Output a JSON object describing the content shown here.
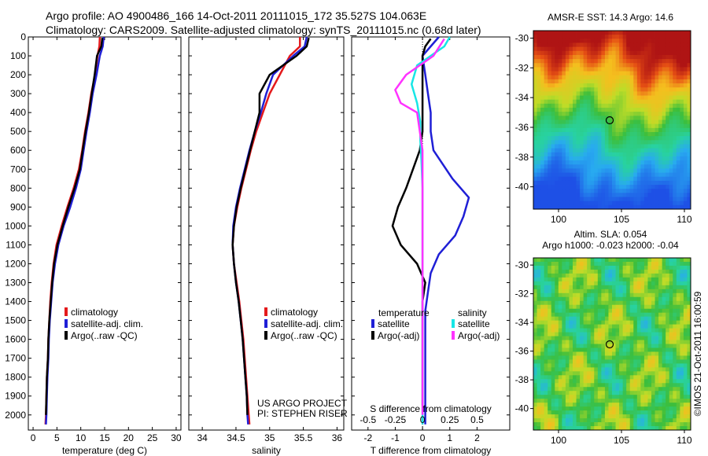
{
  "title_line1": "Argo profile: AO 4900486_166 14-Oct-2011 20111015_172 35.527S 104.063E",
  "title_line2": "Climatology: CARS2009. Satellite-adjusted climatology: synTS_20111015.nc (0.68d later)",
  "colors": {
    "climatology": "#e41a1c",
    "satellite": "#1f1fd6",
    "argo": "#000000",
    "sal_satellite": "#17e6e6",
    "sal_argo": "#ff33ff"
  },
  "chart_data": [
    {
      "type": "line",
      "panel": "temperature",
      "xlabel": "temperature (deg C)",
      "xlim": [
        -1,
        31
      ],
      "ylim": [
        0,
        2080
      ],
      "y_reversed": true,
      "xticks": [
        0,
        5,
        10,
        15,
        20,
        25,
        30
      ],
      "yticks": [
        0,
        100,
        200,
        300,
        400,
        500,
        600,
        700,
        800,
        900,
        1000,
        1100,
        1200,
        1300,
        1400,
        1500,
        1600,
        1700,
        1800,
        1900,
        2000
      ],
      "legend": [
        "climatology",
        "satellite-adj. clim.",
        "Argo(..raw -QC)"
      ],
      "series": [
        {
          "name": "climatology",
          "color_key": "climatology",
          "x": [
            14.0,
            13.9,
            13.5,
            13.0,
            12.2,
            11.6,
            10.9,
            10.3,
            9.6,
            8.5,
            7.2,
            6.0,
            4.9,
            4.3,
            3.9,
            3.6,
            3.4,
            3.2,
            3.1,
            2.9,
            2.8,
            2.7,
            2.6
          ],
          "y": [
            0,
            50,
            100,
            200,
            300,
            400,
            500,
            600,
            700,
            800,
            900,
            1000,
            1100,
            1200,
            1300,
            1400,
            1500,
            1600,
            1700,
            1800,
            1900,
            2000,
            2050
          ]
        },
        {
          "name": "satellite-adj. clim.",
          "color_key": "satellite",
          "x": [
            14.8,
            14.6,
            14.0,
            13.3,
            12.5,
            11.9,
            11.2,
            10.6,
            10.0,
            9.0,
            7.8,
            6.4,
            5.3,
            4.6,
            4.1,
            3.8,
            3.5,
            3.3,
            3.2,
            3.0,
            2.9,
            2.8,
            2.7
          ],
          "y": [
            0,
            50,
            100,
            200,
            300,
            400,
            500,
            600,
            700,
            800,
            900,
            1000,
            1100,
            1200,
            1300,
            1400,
            1500,
            1600,
            1700,
            1800,
            1900,
            2000,
            2050
          ]
        },
        {
          "name": "Argo(..raw -QC)",
          "color_key": "argo",
          "x": [
            14.5,
            14.3,
            13.4,
            12.9,
            12.3,
            11.7,
            11.0,
            10.4,
            9.8,
            8.7,
            7.4,
            6.2,
            5.1,
            4.4,
            4.0,
            3.7,
            3.4,
            3.2,
            3.1,
            2.9,
            2.8,
            2.7
          ],
          "y": [
            5,
            50,
            100,
            200,
            300,
            400,
            500,
            600,
            700,
            800,
            900,
            1000,
            1100,
            1200,
            1300,
            1400,
            1500,
            1600,
            1700,
            1800,
            1900,
            2000
          ]
        }
      ]
    },
    {
      "type": "line",
      "panel": "salinity",
      "xlabel": "salinity",
      "xlim": [
        33.8,
        36.1
      ],
      "ylim": [
        0,
        2080
      ],
      "y_reversed": true,
      "xticks": [
        34,
        34.5,
        35,
        35.5,
        36
      ],
      "xticklabels": [
        "34",
        "34.5",
        "35",
        "35.5",
        "36"
      ],
      "legend": [
        "climatology",
        "satellite-adj. clim.",
        "Argo(..raw -QC)"
      ],
      "annotation": [
        "US ARGO PROJECT",
        "PI: STEPHEN RISER"
      ],
      "series": [
        {
          "name": "climatology",
          "color_key": "climatology",
          "x": [
            35.45,
            35.45,
            35.3,
            35.15,
            35.0,
            34.9,
            34.8,
            34.72,
            34.65,
            34.58,
            34.52,
            34.47,
            34.45,
            34.47,
            34.51,
            34.55,
            34.58,
            34.61,
            34.63,
            34.65,
            34.67,
            34.69,
            34.7
          ],
          "y": [
            0,
            50,
            100,
            200,
            300,
            400,
            500,
            600,
            700,
            800,
            900,
            1000,
            1100,
            1200,
            1300,
            1400,
            1500,
            1600,
            1700,
            1800,
            1900,
            2000,
            2050
          ]
        },
        {
          "name": "satellite-adj. clim.",
          "color_key": "satellite",
          "x": [
            35.55,
            35.52,
            35.35,
            35.05,
            34.95,
            34.87,
            34.78,
            34.7,
            34.63,
            34.56,
            34.5,
            34.46,
            34.45,
            34.47,
            34.5,
            34.54,
            34.57,
            34.6,
            34.62,
            34.64,
            34.66,
            34.67,
            34.68
          ],
          "y": [
            0,
            50,
            100,
            200,
            300,
            400,
            500,
            600,
            700,
            800,
            900,
            1000,
            1100,
            1200,
            1300,
            1400,
            1500,
            1600,
            1700,
            1800,
            1900,
            2000,
            2050
          ]
        },
        {
          "name": "Argo(..raw -QC)",
          "color_key": "argo",
          "x": [
            35.58,
            35.55,
            35.4,
            35.0,
            34.85,
            34.85,
            34.78,
            34.71,
            34.64,
            34.57,
            34.51,
            34.47,
            34.45,
            34.47,
            34.5,
            34.54,
            34.57,
            34.6,
            34.62,
            34.64,
            34.66,
            34.67
          ],
          "y": [
            5,
            50,
            100,
            200,
            300,
            400,
            500,
            600,
            700,
            800,
            900,
            1000,
            1100,
            1200,
            1300,
            1400,
            1500,
            1600,
            1700,
            1800,
            1900,
            2000
          ]
        }
      ]
    },
    {
      "type": "line",
      "panel": "difference",
      "xlabel": "T difference from climatology",
      "xlabel_top": "S difference from climatology",
      "xlim": [
        -2.6,
        3.2
      ],
      "ylim": [
        0,
        2080
      ],
      "y_reversed": true,
      "xticks": [
        -2,
        -1,
        0,
        1,
        2
      ],
      "top_xticks": [
        -0.5,
        -0.25,
        0,
        0.25,
        0.5
      ],
      "top_xticklabels": [
        "-0.5",
        "-0.25",
        "0",
        "0.25",
        "0.5"
      ],
      "legend_temperature_title": "temperature",
      "legend_salinity_title": "salinity",
      "legend_temperature": [
        "satellite",
        "Argo(-adj)"
      ],
      "legend_salinity": [
        "satellite",
        "Argo(-adj)"
      ],
      "series": [
        {
          "name": "satellite",
          "quantity": "temperature",
          "color_key": "satellite",
          "x": [
            0.6,
            0.3,
            0.0,
            0.1,
            0.2,
            0.3,
            0.3,
            0.4,
            1.1,
            1.7,
            1.5,
            1.2,
            0.6,
            0.3,
            0.2,
            0.1,
            0.1,
            0.1,
            0.1,
            0.1,
            0.1,
            0.1
          ],
          "y": [
            0,
            50,
            100,
            200,
            300,
            400,
            500,
            600,
            750,
            850,
            950,
            1050,
            1150,
            1250,
            1350,
            1450,
            1550,
            1650,
            1750,
            1850,
            1950,
            2050
          ]
        },
        {
          "name": "Argo(-adj)",
          "quantity": "temperature",
          "color_key": "argo",
          "x": [
            0.3,
            0.1,
            0.0,
            0.0,
            0.0,
            0.0,
            0.0,
            -0.1,
            -0.6,
            -0.9,
            -1.1,
            -0.8,
            -0.2,
            0.1,
            0.0,
            0.0,
            0.0,
            0.0,
            0.0,
            0.0
          ],
          "y": [
            10,
            50,
            100,
            200,
            300,
            400,
            500,
            600,
            800,
            900,
            1000,
            1100,
            1200,
            1300,
            1400,
            1500,
            1600,
            1700,
            1800,
            1950
          ]
        },
        {
          "name": "satellite",
          "quantity": "salinity",
          "color_key": "sal_satellite",
          "x": [
            0.25,
            0.2,
            -0.05,
            -0.1,
            -0.05,
            -0.02,
            -0.02,
            -0.01,
            0.0,
            0.0,
            0.0,
            0.0,
            0.0,
            0.0,
            0.0,
            0.0,
            0.0,
            0.0,
            0.0
          ],
          "y": [
            0,
            50,
            150,
            250,
            350,
            450,
            550,
            650,
            800,
            950,
            1100,
            1250,
            1400,
            1550,
            1700,
            1850,
            1950,
            2000,
            2050
          ]
        },
        {
          "name": "Argo(-adj)",
          "quantity": "salinity",
          "color_key": "sal_argo",
          "x": [
            0.2,
            0.1,
            -0.15,
            -0.25,
            -0.2,
            -0.05,
            0.0,
            0.0,
            0.0
          ],
          "y": [
            10,
            100,
            200,
            280,
            350,
            400,
            600,
            1000,
            2000
          ]
        }
      ]
    },
    {
      "type": "heatmap",
      "panel": "sst_map",
      "title": "AMSR-E SST: 14.3 Argo: 14.6",
      "xlim": [
        98,
        110.5
      ],
      "ylim": [
        -41.5,
        -29.5
      ],
      "xticks": [
        100,
        105,
        110
      ],
      "yticks": [
        -30,
        -32,
        -34,
        -36,
        -38,
        -40
      ],
      "marker": {
        "lon": 104.063,
        "lat": -35.527
      }
    },
    {
      "type": "heatmap",
      "panel": "sla_map",
      "title": "Altim. SLA: 0.054",
      "subtitle": "Argo h1000: -0.023 h2000: -0.04",
      "xlim": [
        98,
        110.5
      ],
      "ylim": [
        -41.5,
        -29.5
      ],
      "xticks": [
        100,
        105,
        110
      ],
      "yticks": [
        -30,
        -32,
        -34,
        -36,
        -38,
        -40
      ],
      "marker": {
        "lon": 104.063,
        "lat": -35.527
      }
    }
  ],
  "credit": "©IMOS 21-Oct-2011 16:00:59"
}
